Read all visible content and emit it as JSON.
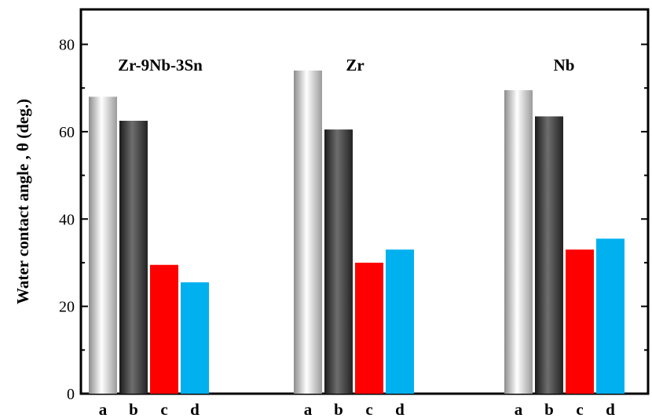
{
  "chart_data": {
    "type": "bar",
    "ylabel": "Water contact angle , θ (deg.)",
    "ylim": [
      0,
      88
    ],
    "yticks": [
      0,
      20,
      40,
      60,
      80
    ],
    "groups": [
      {
        "name": "Zr-9Nb-3Sn",
        "categories": [
          "a",
          "b",
          "c",
          "d"
        ],
        "values": [
          68,
          62.5,
          29.5,
          25.5
        ]
      },
      {
        "name": "Zr",
        "categories": [
          "a",
          "b",
          "c",
          "d"
        ],
        "values": [
          74,
          60.5,
          30,
          33
        ]
      },
      {
        "name": "Nb",
        "categories": [
          "a",
          "b",
          "c",
          "d"
        ],
        "values": [
          69.5,
          63.5,
          33,
          35.5
        ]
      }
    ],
    "colors": {
      "a": "silver-gradient",
      "b": "dark-gray-gradient",
      "c": "#ff0000",
      "d": "#00b0ef"
    }
  }
}
